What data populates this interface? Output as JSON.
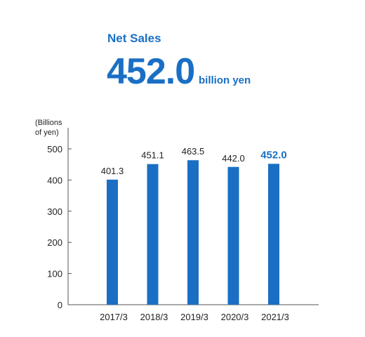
{
  "headline": {
    "label": "Net Sales",
    "value": "452.0",
    "unit": "billion yen"
  },
  "chart_data": {
    "type": "bar",
    "y_unit_label": [
      "(Billions",
      "of yen)"
    ],
    "categories": [
      "2017/3",
      "2018/3",
      "2019/3",
      "2020/3",
      "2021/3"
    ],
    "values": [
      401.3,
      451.1,
      463.5,
      442.0,
      452.0
    ],
    "value_labels": [
      "401.3",
      "451.1",
      "463.5",
      "442.0",
      "452.0"
    ],
    "highlight_index": 4,
    "ylim": [
      0,
      500
    ],
    "yticks": [
      0,
      100,
      200,
      300,
      400,
      500
    ],
    "grid": false,
    "bar_color": "#1a6fc4",
    "highlight_label_color": "#1a6fc4"
  }
}
